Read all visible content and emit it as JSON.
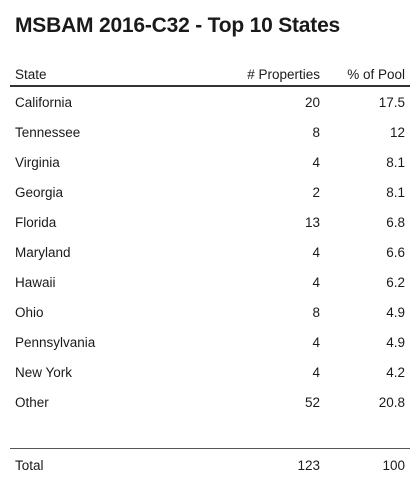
{
  "title": "MSBAM 2016-C32 - Top 10 States",
  "chart_data": {
    "type": "table",
    "title": "MSBAM 2016-C32 - Top 10 States",
    "columns": [
      "State",
      "# Properties",
      "% of Pool"
    ],
    "rows": [
      {
        "state": "California",
        "properties": "20",
        "pct": "17.5"
      },
      {
        "state": "Tennessee",
        "properties": "8",
        "pct": "12"
      },
      {
        "state": "Virginia",
        "properties": "4",
        "pct": "8.1"
      },
      {
        "state": "Georgia",
        "properties": "2",
        "pct": "8.1"
      },
      {
        "state": "Florida",
        "properties": "13",
        "pct": "6.8"
      },
      {
        "state": "Maryland",
        "properties": "4",
        "pct": "6.6"
      },
      {
        "state": "Hawaii",
        "properties": "4",
        "pct": "6.2"
      },
      {
        "state": "Ohio",
        "properties": "8",
        "pct": "4.9"
      },
      {
        "state": "Pennsylvania",
        "properties": "4",
        "pct": "4.9"
      },
      {
        "state": "New York",
        "properties": "4",
        "pct": "4.2"
      },
      {
        "state": "Other",
        "properties": "52",
        "pct": "20.8"
      }
    ],
    "total": {
      "label": "Total",
      "properties": "123",
      "pct": "100"
    }
  }
}
